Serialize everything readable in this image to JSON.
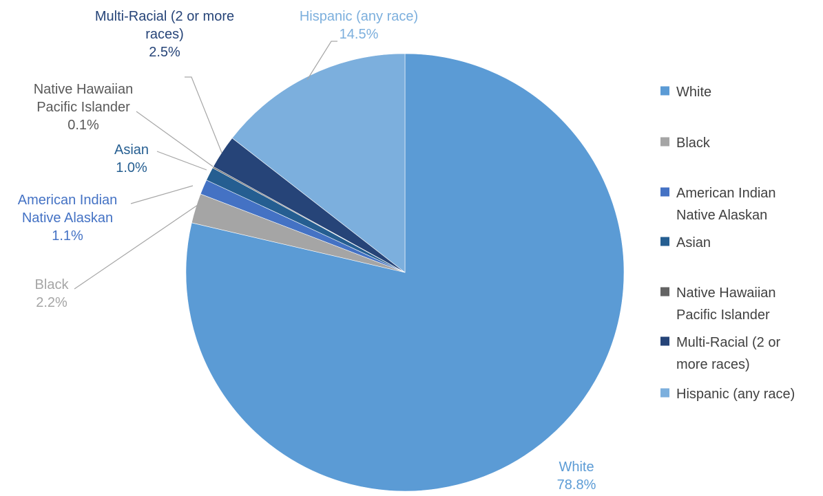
{
  "chart_data": {
    "type": "pie",
    "title": "",
    "legend_position": "right",
    "slices": [
      {
        "name": "White",
        "legend_lines": [
          "White"
        ],
        "label_lines": [
          "White"
        ],
        "value": 78.8,
        "value_label": "78.8%",
        "color": "#5b9bd5",
        "label_color": "#5b9bd5"
      },
      {
        "name": "Black",
        "legend_lines": [
          "Black"
        ],
        "label_lines": [
          "Black"
        ],
        "value": 2.2,
        "value_label": "2.2%",
        "color": "#a5a5a5",
        "label_color": "#a5a5a5"
      },
      {
        "name": "American Indian Native Alaskan",
        "legend_lines": [
          "American Indian",
          "Native Alaskan"
        ],
        "label_lines": [
          "American Indian",
          "Native Alaskan"
        ],
        "value": 1.1,
        "value_label": "1.1%",
        "color": "#4472c4",
        "label_color": "#4472c4"
      },
      {
        "name": "Asian",
        "legend_lines": [
          "Asian"
        ],
        "label_lines": [
          "Asian"
        ],
        "value": 1.0,
        "value_label": "1.0%",
        "color": "#255e91",
        "label_color": "#255e91"
      },
      {
        "name": "Native Hawaiian Pacific Islander",
        "legend_lines": [
          "Native Hawaiian",
          "Pacific Islander"
        ],
        "label_lines": [
          "Native Hawaiian",
          "Pacific Islander"
        ],
        "value": 0.1,
        "value_label": "0.1%",
        "color": "#636363",
        "label_color": "#595959"
      },
      {
        "name": "Multi-Racial (2 or more races)",
        "legend_lines": [
          "Multi-Racial (2 or",
          "more races)"
        ],
        "label_lines": [
          "Multi-Racial (2 or more",
          "races)"
        ],
        "value": 2.5,
        "value_label": "2.5%",
        "color": "#264478",
        "label_color": "#264478"
      },
      {
        "name": "Hispanic (any race)",
        "legend_lines": [
          "Hispanic (any race)"
        ],
        "label_lines": [
          "Hispanic (any race)"
        ],
        "value": 14.5,
        "value_label": "14.5%",
        "color": "#7cafdd",
        "label_color": "#7cafdd"
      }
    ]
  }
}
